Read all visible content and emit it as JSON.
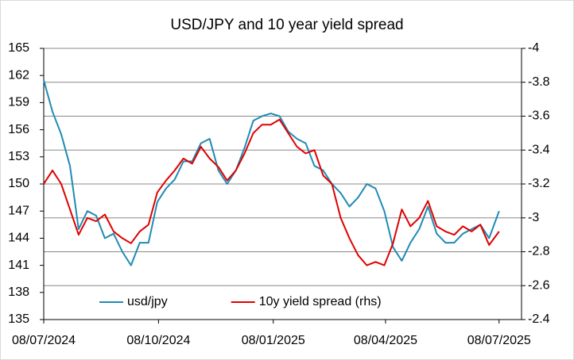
{
  "chart_data": {
    "type": "line",
    "title": "USD/JPY and 10 year yield spread",
    "x": [
      "2024-07-08",
      "2024-07-15",
      "2024-07-22",
      "2024-07-29",
      "2024-08-05",
      "2024-08-12",
      "2024-08-19",
      "2024-08-26",
      "2024-09-02",
      "2024-09-09",
      "2024-09-16",
      "2024-09-23",
      "2024-09-30",
      "2024-10-07",
      "2024-10-14",
      "2024-10-21",
      "2024-10-28",
      "2024-11-04",
      "2024-11-11",
      "2024-11-18",
      "2024-11-25",
      "2024-12-02",
      "2024-12-09",
      "2024-12-16",
      "2024-12-23",
      "2024-12-30",
      "2025-01-06",
      "2025-01-13",
      "2025-01-20",
      "2025-01-27",
      "2025-02-03",
      "2025-02-10",
      "2025-02-17",
      "2025-02-24",
      "2025-03-03",
      "2025-03-10",
      "2025-03-17",
      "2025-03-24",
      "2025-03-31",
      "2025-04-07",
      "2025-04-14",
      "2025-04-21",
      "2025-04-28",
      "2025-05-05",
      "2025-05-12",
      "2025-05-19",
      "2025-05-26",
      "2025-06-02",
      "2025-06-09",
      "2025-06-16",
      "2025-06-23",
      "2025-06-30",
      "2025-07-08"
    ],
    "series": [
      {
        "name": "usd/jpy",
        "color": "#1f8bb5",
        "values": [
          161.5,
          158.0,
          155.5,
          152.0,
          145.0,
          147.0,
          146.5,
          144.0,
          144.5,
          142.5,
          141.0,
          143.5,
          143.5,
          148.0,
          149.5,
          150.5,
          152.5,
          152.5,
          154.5,
          155.0,
          151.5,
          150.0,
          151.5,
          154.0,
          157.0,
          157.5,
          157.8,
          157.5,
          155.8,
          155.0,
          154.5,
          152.0,
          151.5,
          150.0,
          149.0,
          147.5,
          148.5,
          150.0,
          149.5,
          147.0,
          143.0,
          141.5,
          143.5,
          145.0,
          147.5,
          144.5,
          143.5,
          143.5,
          144.5,
          145.0,
          145.5,
          144.0,
          147.0
        ]
      },
      {
        "name": "10y yield spread (rhs)",
        "color": "#e00000",
        "axis": "y2",
        "values": [
          -3.2,
          -3.28,
          -3.2,
          -3.05,
          -2.9,
          -3.0,
          -2.98,
          -3.02,
          -2.92,
          -2.88,
          -2.85,
          -2.92,
          -2.96,
          -3.15,
          -3.22,
          -3.28,
          -3.35,
          -3.32,
          -3.42,
          -3.35,
          -3.3,
          -3.22,
          -3.28,
          -3.38,
          -3.5,
          -3.55,
          -3.55,
          -3.58,
          -3.5,
          -3.42,
          -3.38,
          -3.4,
          -3.25,
          -3.2,
          -3.0,
          -2.88,
          -2.78,
          -2.72,
          -2.74,
          -2.72,
          -2.85,
          -3.05,
          -2.95,
          -3.0,
          -3.1,
          -2.95,
          -2.92,
          -2.9,
          -2.95,
          -2.92,
          -2.96,
          -2.84,
          -2.92
        ]
      }
    ],
    "xlim": [
      "2024-07-08",
      "2025-07-26"
    ],
    "xticks": [
      {
        "value": "2024-07-08",
        "label": "08/07/2024"
      },
      {
        "value": "2024-10-08",
        "label": "08/10/2024"
      },
      {
        "value": "2025-01-08",
        "label": "08/01/2025"
      },
      {
        "value": "2025-04-08",
        "label": "08/04/2025"
      },
      {
        "value": "2025-07-08",
        "label": "08/07/2025"
      }
    ],
    "ylim": [
      135,
      165
    ],
    "yticks": [
      135,
      138,
      141,
      144,
      147,
      150,
      153,
      156,
      159,
      162,
      165
    ],
    "y2lim": [
      -2.4,
      -4
    ],
    "y2ticks": [
      -4,
      -3.8,
      -3.6,
      -3.4,
      -3.2,
      -3,
      -2.8,
      -2.6,
      -2.4
    ],
    "grid": "y2",
    "legend": "lower left"
  }
}
